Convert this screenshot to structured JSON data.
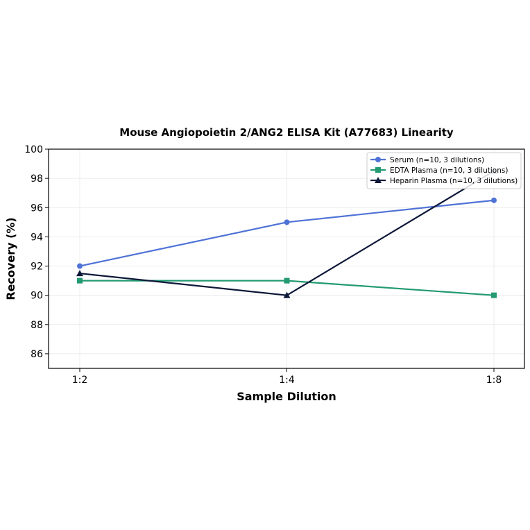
{
  "chart_data": {
    "type": "line",
    "title": "Mouse Angiopoietin 2/ANG2 ELISA Kit (A77683) Linearity",
    "xlabel": "Sample Dilution",
    "ylabel": "Recovery (%)",
    "categories": [
      "1:2",
      "1:4",
      "1:8"
    ],
    "ylim": [
      85,
      100
    ],
    "yticks": [
      86,
      88,
      90,
      92,
      94,
      96,
      98,
      100
    ],
    "grid": true,
    "legend_position": "top-right",
    "series": [
      {
        "name": "Serum (n=10, 3 dilutions)",
        "values": [
          92,
          95,
          96.5
        ],
        "color": "#4f72d6",
        "marker": "circle"
      },
      {
        "name": "EDTA Plasma (n=10, 3 dilutions)",
        "values": [
          91,
          91,
          90
        ],
        "color": "#239a72",
        "marker": "square"
      },
      {
        "name": "Heparin Plasma (n=10, 3 dilutions)",
        "values": [
          91.5,
          90,
          98.5
        ],
        "color": "#0d1838",
        "marker": "triangle"
      }
    ]
  }
}
